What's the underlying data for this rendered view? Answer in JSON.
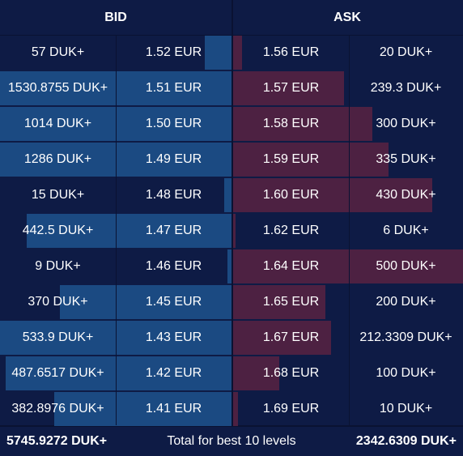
{
  "header": {
    "bid_label": "BID",
    "ask_label": "ASK"
  },
  "colors": {
    "background": "#0e1b45",
    "bid_bar": "#1b4a82",
    "ask_bar": "#4d2142",
    "divider": "#0a1232"
  },
  "max_depth": 500,
  "rows": [
    {
      "bid_qty": "57 DUK+",
      "bid_price": "1.52 EUR",
      "ask_price": "1.56 EUR",
      "ask_qty": "20 DUK+",
      "bid_depth": 57,
      "ask_depth": 20
    },
    {
      "bid_qty": "1530.8755 DUK+",
      "bid_price": "1.51 EUR",
      "ask_price": "1.57 EUR",
      "ask_qty": "239.3 DUK+",
      "bid_depth": 1530.8755,
      "ask_depth": 239.3
    },
    {
      "bid_qty": "1014 DUK+",
      "bid_price": "1.50 EUR",
      "ask_price": "1.58 EUR",
      "ask_qty": "300 DUK+",
      "bid_depth": 1014,
      "ask_depth": 300
    },
    {
      "bid_qty": "1286 DUK+",
      "bid_price": "1.49 EUR",
      "ask_price": "1.59 EUR",
      "ask_qty": "335 DUK+",
      "bid_depth": 1286,
      "ask_depth": 335
    },
    {
      "bid_qty": "15 DUK+",
      "bid_price": "1.48 EUR",
      "ask_price": "1.60 EUR",
      "ask_qty": "430 DUK+",
      "bid_depth": 15,
      "ask_depth": 430
    },
    {
      "bid_qty": "442.5 DUK+",
      "bid_price": "1.47 EUR",
      "ask_price": "1.62 EUR",
      "ask_qty": "6 DUK+",
      "bid_depth": 442.5,
      "ask_depth": 6
    },
    {
      "bid_qty": "9 DUK+",
      "bid_price": "1.46 EUR",
      "ask_price": "1.64 EUR",
      "ask_qty": "500 DUK+",
      "bid_depth": 9,
      "ask_depth": 500
    },
    {
      "bid_qty": "370 DUK+",
      "bid_price": "1.45 EUR",
      "ask_price": "1.65 EUR",
      "ask_qty": "200 DUK+",
      "bid_depth": 370,
      "ask_depth": 200
    },
    {
      "bid_qty": "533.9 DUK+",
      "bid_price": "1.43 EUR",
      "ask_price": "1.67 EUR",
      "ask_qty": "212.3309 DUK+",
      "bid_depth": 533.9,
      "ask_depth": 212.3309
    },
    {
      "bid_qty": "487.6517 DUK+",
      "bid_price": "1.42 EUR",
      "ask_price": "1.68 EUR",
      "ask_qty": "100 DUK+",
      "bid_depth": 487.6517,
      "ask_depth": 100
    },
    {
      "bid_qty": "382.8976 DUK+",
      "bid_price": "1.41 EUR",
      "ask_price": "1.69 EUR",
      "ask_qty": "10 DUK+",
      "bid_depth": 382.8976,
      "ask_depth": 10
    }
  ],
  "footer": {
    "bid_total": "5745.9272 DUK+",
    "label": "Total for best 10 levels",
    "ask_total": "2342.6309 DUK+"
  }
}
